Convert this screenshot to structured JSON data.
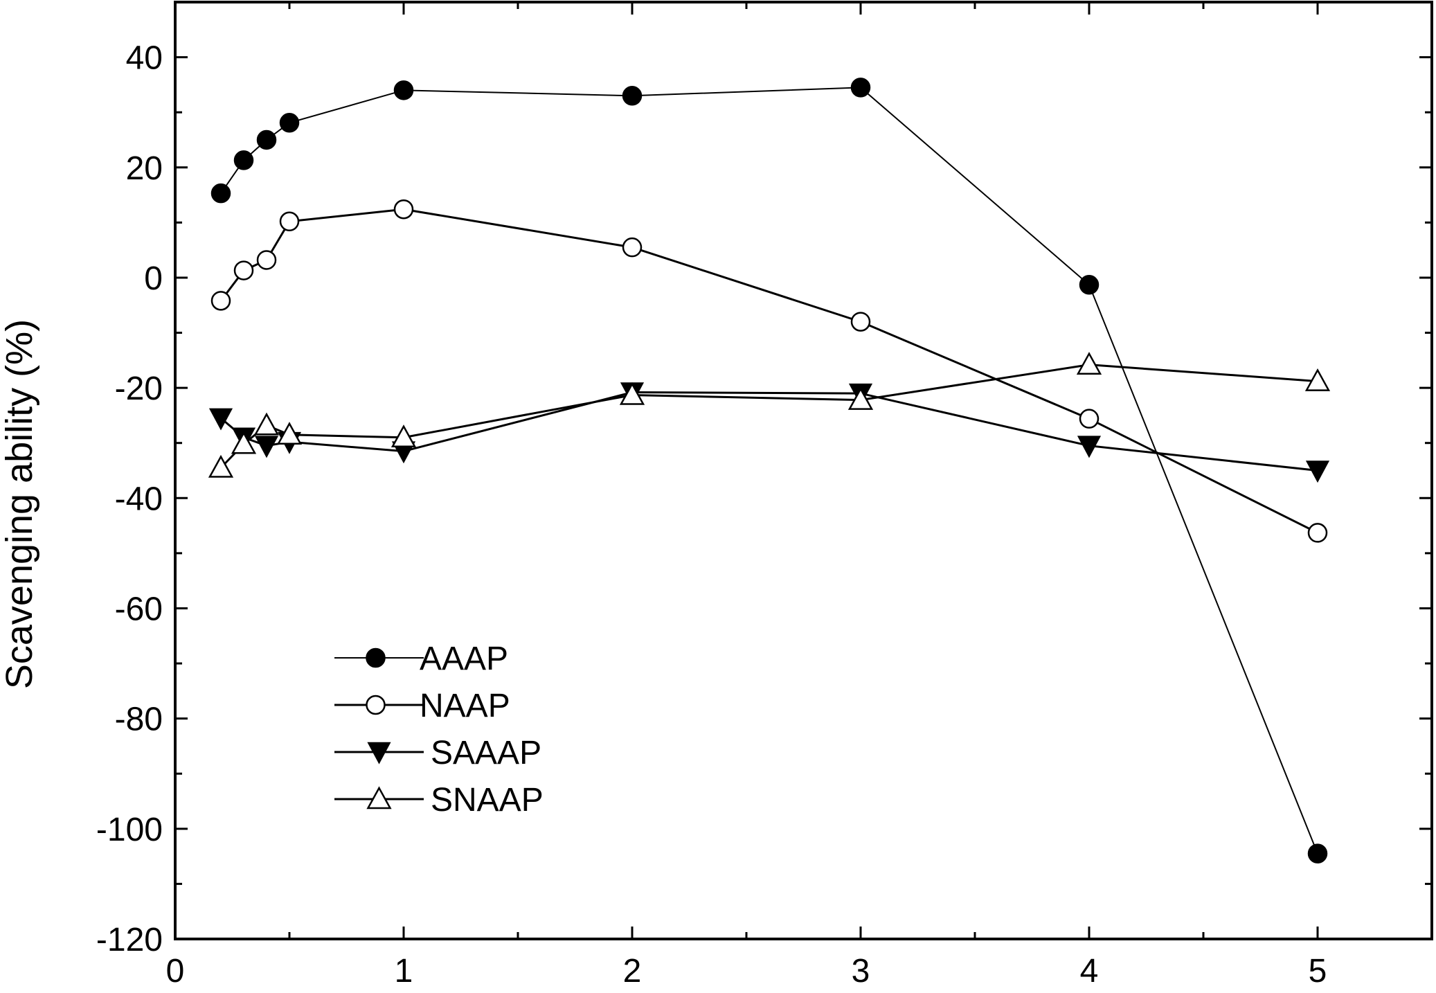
{
  "chart_data": {
    "type": "line",
    "title": "",
    "xlabel": "",
    "ylabel": "Scavenging ability (%)",
    "xlim": [
      0,
      5.5
    ],
    "ylim": [
      -120,
      50
    ],
    "x_ticks": [
      0,
      1,
      2,
      3,
      4,
      5
    ],
    "x_tick_labels": [
      "0",
      "1",
      "2",
      "3",
      "4",
      "5"
    ],
    "y_ticks": [
      -120,
      -100,
      -80,
      -60,
      -40,
      -20,
      0,
      20,
      40
    ],
    "y_tick_labels": [
      "-120",
      "-100",
      "-80",
      "-60",
      "-40",
      "-20",
      "0",
      "20",
      "40"
    ],
    "grid": false,
    "legend_position": "bottom-left",
    "series": [
      {
        "name": "AAAP",
        "marker": "filled-circle",
        "line_color": "#000000",
        "fill": "#000000",
        "x": [
          0.2,
          0.3,
          0.4,
          0.5,
          1,
          2,
          3,
          4,
          5
        ],
        "y": [
          15.3,
          21.3,
          25.0,
          28.1,
          34.0,
          33.0,
          34.5,
          -1.3,
          -104.5
        ]
      },
      {
        "name": "NAAP",
        "marker": "open-circle",
        "line_color": "#000000",
        "fill": "#ffffff",
        "x": [
          0.2,
          0.3,
          0.4,
          0.5,
          1,
          2,
          3,
          4,
          5
        ],
        "y": [
          -4.2,
          1.3,
          3.2,
          10.2,
          12.4,
          5.5,
          -8.0,
          -25.6,
          -46.3
        ]
      },
      {
        "name": "SAAAP",
        "marker": "filled-triangle-down",
        "line_color": "#000000",
        "fill": "#000000",
        "x": [
          0.2,
          0.3,
          0.4,
          0.5,
          1,
          2,
          3,
          4,
          5
        ],
        "y": [
          -25.5,
          -29.0,
          -30.5,
          -29.8,
          -31.5,
          -20.8,
          -21.0,
          -30.5,
          -35.0
        ]
      },
      {
        "name": "SNAAP",
        "marker": "open-triangle-up",
        "line_color": "#000000",
        "fill": "#ffffff",
        "x": [
          0.2,
          0.3,
          0.4,
          0.5,
          1,
          2,
          3,
          4,
          5
        ],
        "y": [
          -34.5,
          -30.2,
          -26.8,
          -28.5,
          -29.0,
          -21.3,
          -22.2,
          -15.8,
          -18.8
        ]
      }
    ]
  }
}
